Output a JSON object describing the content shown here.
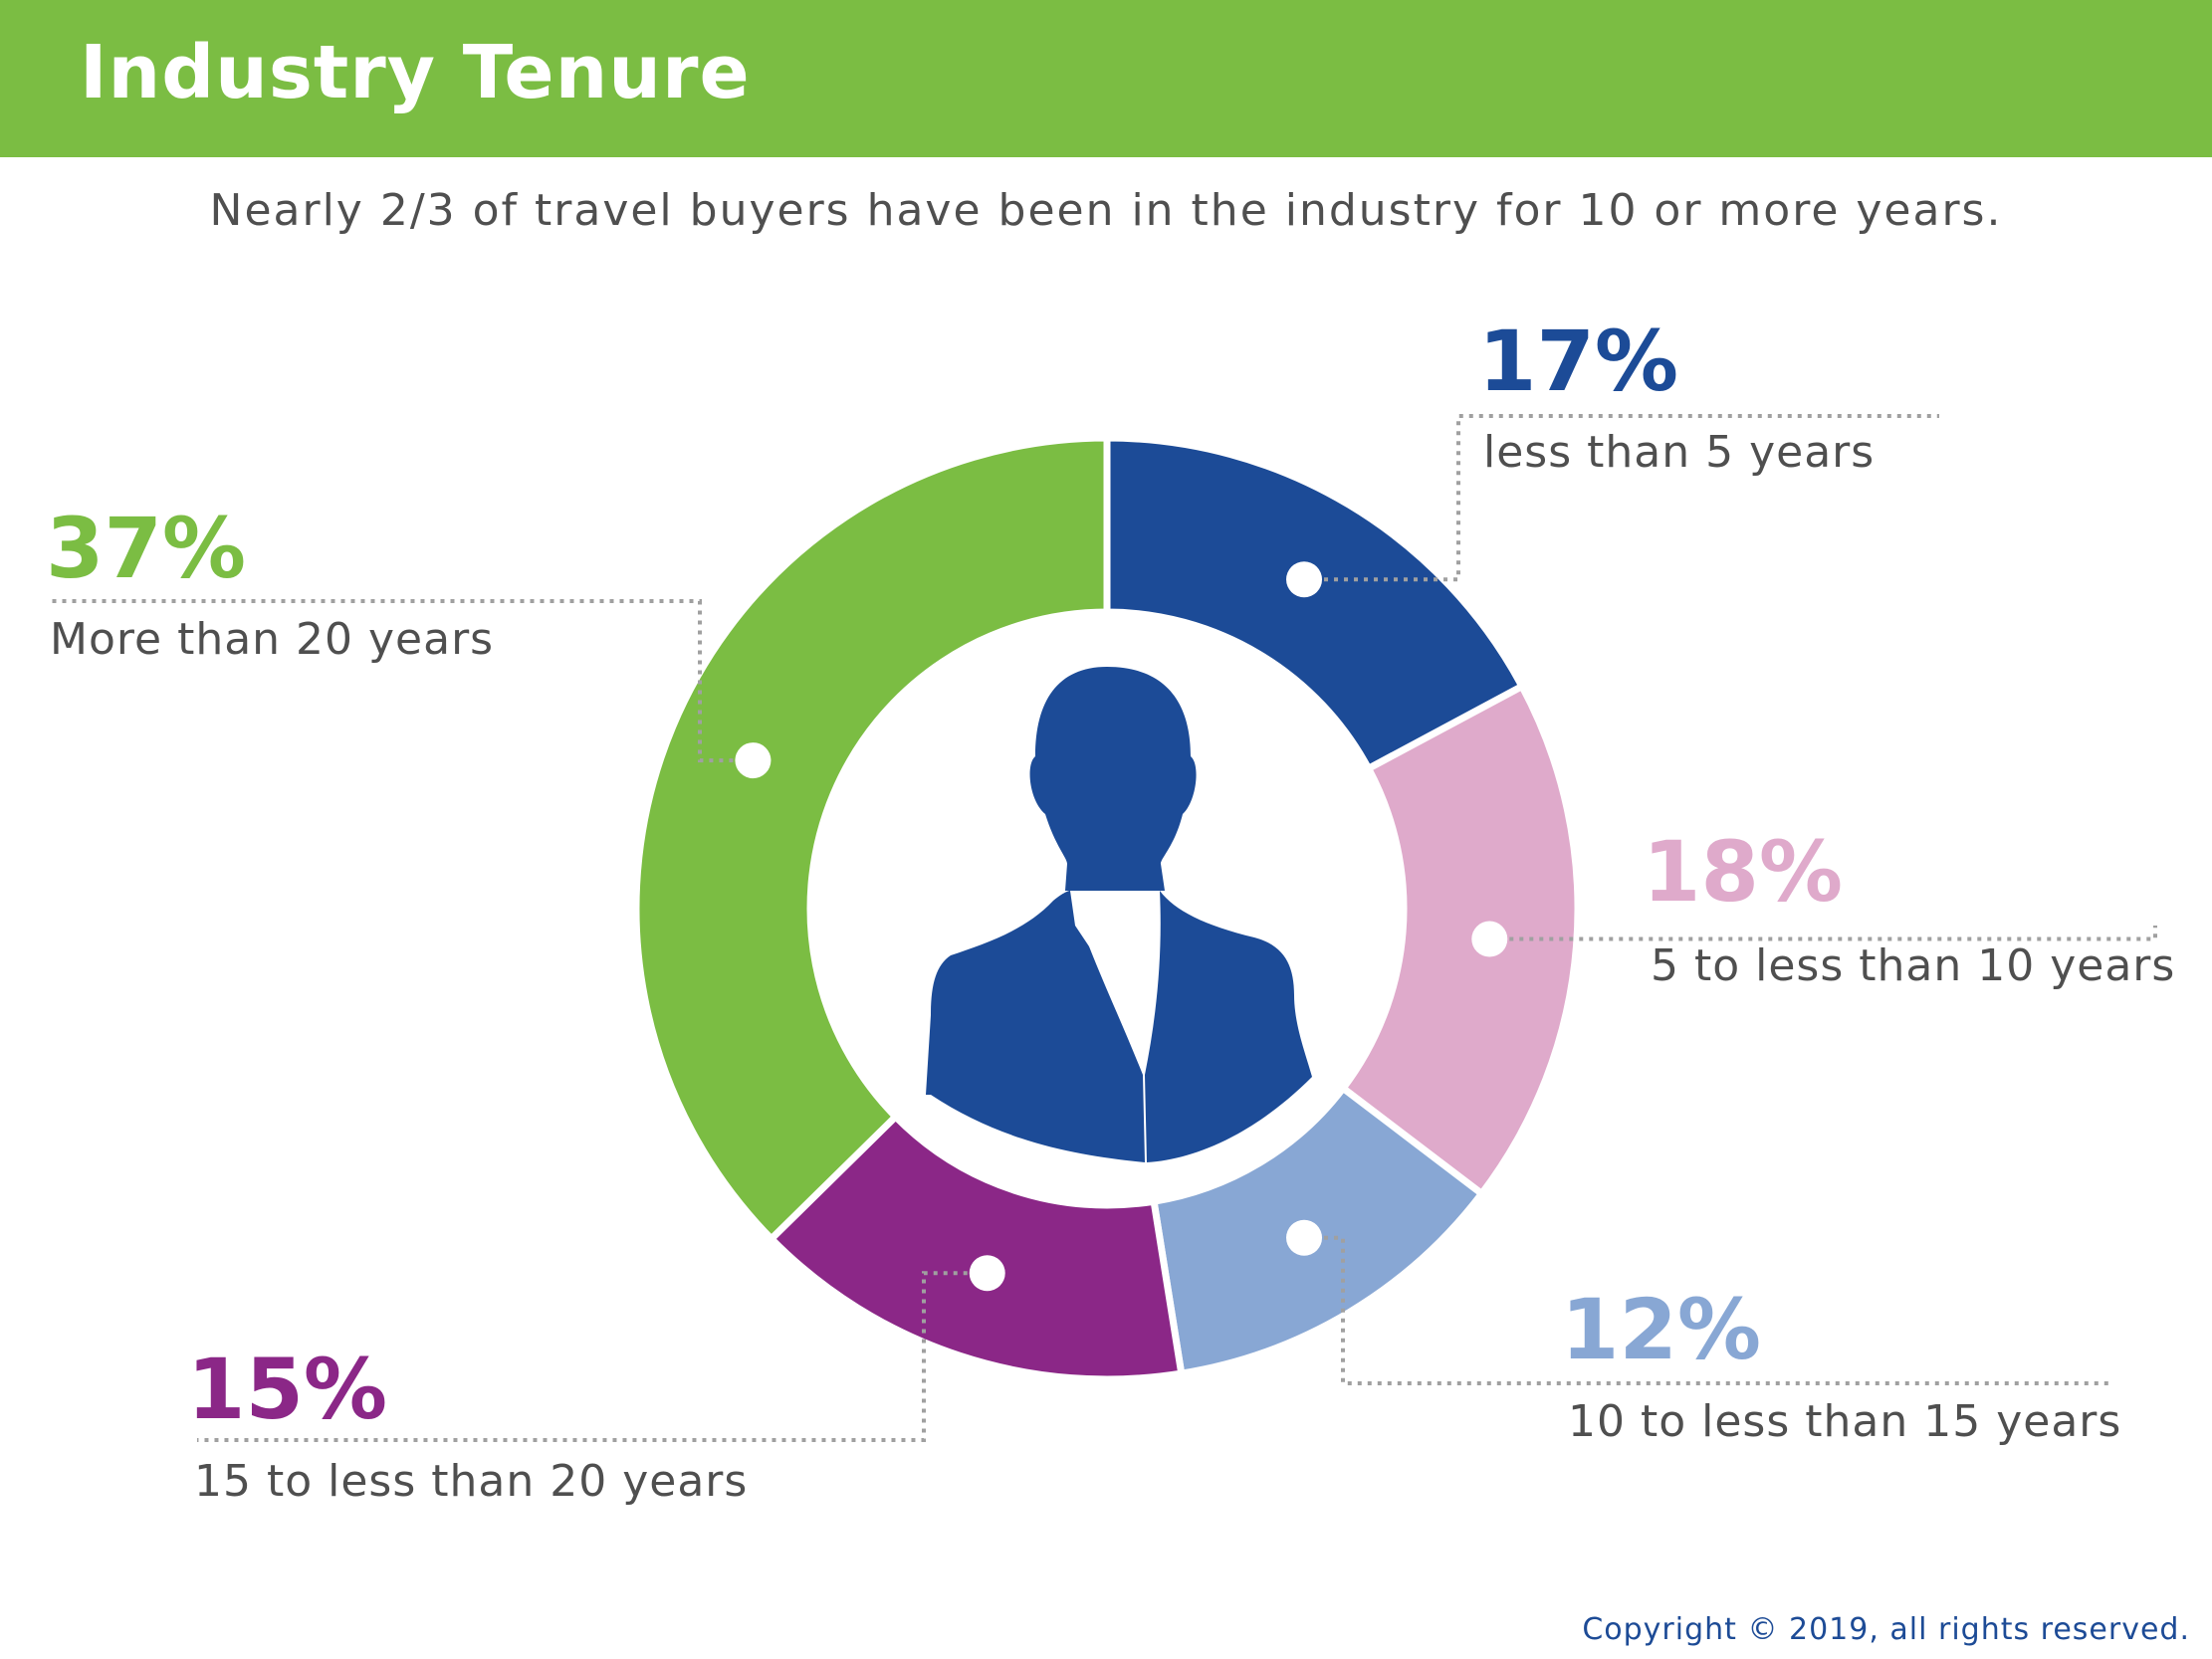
{
  "header": {
    "title": "Industry Tenure"
  },
  "subtitle": "Nearly 2/3 of travel buyers have been in the industry for 10 or more years.",
  "chart_data": {
    "type": "pie",
    "style": "donut",
    "categories": [
      "less than 5 years",
      "5 to less than 10 years",
      "10 to less than 15 years",
      "15 to less than 20 years",
      "More than 20 years"
    ],
    "values": [
      17,
      18,
      12,
      15,
      37
    ],
    "value_labels": [
      "17%",
      "18%",
      "12%",
      "15%",
      "37%"
    ],
    "colors": [
      "#1c4b97",
      "#dfaacb",
      "#88a7d4",
      "#8b2787",
      "#7bbd43"
    ],
    "center_icon": "businessperson-silhouette-icon"
  },
  "copyright": "Copyright © 2019, all rights reserved."
}
